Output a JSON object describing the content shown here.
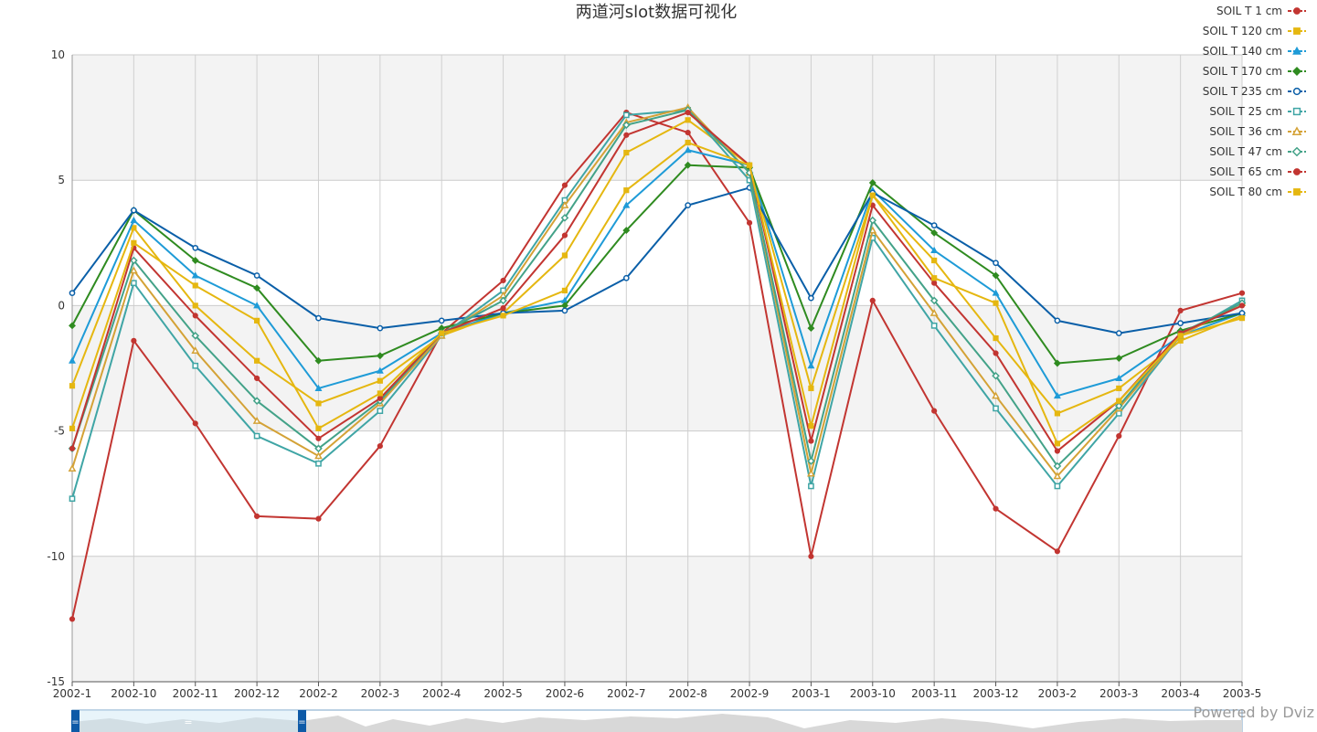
{
  "chart_data": {
    "type": "line",
    "title": "两道河slot数据可视化",
    "xlabel": "",
    "ylabel": "",
    "ylim": [
      -15,
      10
    ],
    "yticks": [
      10,
      5,
      0,
      -5,
      -10,
      -15
    ],
    "grid": true,
    "legend_position": "top-right",
    "categories": [
      "2002-1",
      "2002-10",
      "2002-11",
      "2002-12",
      "2002-2",
      "2002-3",
      "2002-4",
      "2002-5",
      "2002-6",
      "2002-7",
      "2002-8",
      "2002-9",
      "2003-1",
      "2003-10",
      "2003-11",
      "2003-12",
      "2003-2",
      "2003-3",
      "2003-4",
      "2003-5"
    ],
    "series": [
      {
        "name": "SOIL T 1 cm",
        "color": "#c23531",
        "marker": "circle",
        "values": [
          -12.5,
          -1.4,
          -4.7,
          -8.4,
          -8.5,
          -5.6,
          -1.1,
          1.0,
          4.8,
          7.7,
          6.9,
          3.3,
          -10.0,
          0.2,
          -4.2,
          -8.1,
          -9.8,
          -5.2,
          -0.2,
          0.5
        ]
      },
      {
        "name": "SOIL T 120 cm",
        "color": "#e5b710",
        "marker": "square",
        "values": [
          -3.2,
          3.1,
          0.0,
          -2.2,
          -3.9,
          -3.0,
          -1.2,
          -0.3,
          2.0,
          6.1,
          7.4,
          5.6,
          -3.3,
          4.4,
          1.8,
          -1.3,
          -4.3,
          -3.3,
          -1.4,
          -0.4
        ]
      },
      {
        "name": "SOIL T 140 cm",
        "color": "#1e9bd7",
        "marker": "triangle",
        "values": [
          -2.2,
          3.4,
          1.2,
          0.0,
          -3.3,
          -2.6,
          -1.1,
          -0.3,
          0.2,
          4.0,
          6.2,
          5.6,
          -2.4,
          4.6,
          2.2,
          0.5,
          -3.6,
          -2.9,
          -1.2,
          -0.3
        ]
      },
      {
        "name": "SOIL T 170 cm",
        "color": "#2f8b20",
        "marker": "diamond",
        "values": [
          -0.8,
          3.8,
          1.8,
          0.7,
          -2.2,
          -2.0,
          -0.9,
          -0.3,
          0.0,
          3.0,
          5.6,
          5.5,
          -0.9,
          4.9,
          2.9,
          1.2,
          -2.3,
          -2.1,
          -1.0,
          -0.3
        ]
      },
      {
        "name": "SOIL T 235 cm",
        "color": "#0a5fa8",
        "marker": "circle-hollow",
        "values": [
          0.5,
          3.8,
          2.3,
          1.2,
          -0.5,
          -0.9,
          -0.6,
          -0.3,
          -0.2,
          1.1,
          4.0,
          4.7,
          0.3,
          4.5,
          3.2,
          1.7,
          -0.6,
          -1.1,
          -0.7,
          -0.3
        ]
      },
      {
        "name": "SOIL T 25 cm",
        "color": "#3fa5a5",
        "marker": "square-hollow",
        "values": [
          -7.7,
          0.9,
          -2.4,
          -5.2,
          -6.3,
          -4.2,
          -1.2,
          0.6,
          4.2,
          7.6,
          7.8,
          5.0,
          -7.2,
          2.7,
          -0.8,
          -4.1,
          -7.2,
          -4.3,
          -1.2,
          0.2
        ]
      },
      {
        "name": "SOIL T 36 cm",
        "color": "#d4a236",
        "marker": "triangle-hollow",
        "values": [
          -6.5,
          1.4,
          -1.8,
          -4.6,
          -6.0,
          -3.9,
          -1.2,
          0.4,
          4.0,
          7.3,
          7.9,
          5.3,
          -6.7,
          3.0,
          -0.3,
          -3.6,
          -6.8,
          -4.1,
          -1.2,
          0.1
        ]
      },
      {
        "name": "SOIL T 47 cm",
        "color": "#43a288",
        "marker": "diamond-hollow",
        "values": [
          -5.7,
          1.8,
          -1.2,
          -3.8,
          -5.7,
          -3.8,
          -1.1,
          0.2,
          3.5,
          7.2,
          7.8,
          5.3,
          -6.2,
          3.4,
          0.2,
          -2.8,
          -6.4,
          -4.0,
          -1.1,
          0.1
        ]
      },
      {
        "name": "SOIL T 65 cm",
        "color": "#c23531",
        "marker": "circle",
        "values": [
          -5.7,
          2.3,
          -0.4,
          -2.9,
          -5.3,
          -3.7,
          -1.1,
          -0.1,
          2.8,
          6.8,
          7.7,
          5.6,
          -5.4,
          4.0,
          0.9,
          -1.9,
          -5.8,
          -3.8,
          -1.1,
          0.0
        ]
      },
      {
        "name": "SOIL T 80 cm",
        "color": "#e5b710",
        "marker": "square",
        "values": [
          -4.9,
          2.5,
          0.8,
          -0.6,
          -4.9,
          -3.5,
          -1.1,
          -0.4,
          0.6,
          4.6,
          6.5,
          5.6,
          -4.8,
          4.4,
          1.1,
          0.1,
          -5.5,
          -3.8,
          -1.2,
          -0.5
        ]
      }
    ]
  },
  "footer": {
    "powered_by": "Powered by Dviz"
  }
}
